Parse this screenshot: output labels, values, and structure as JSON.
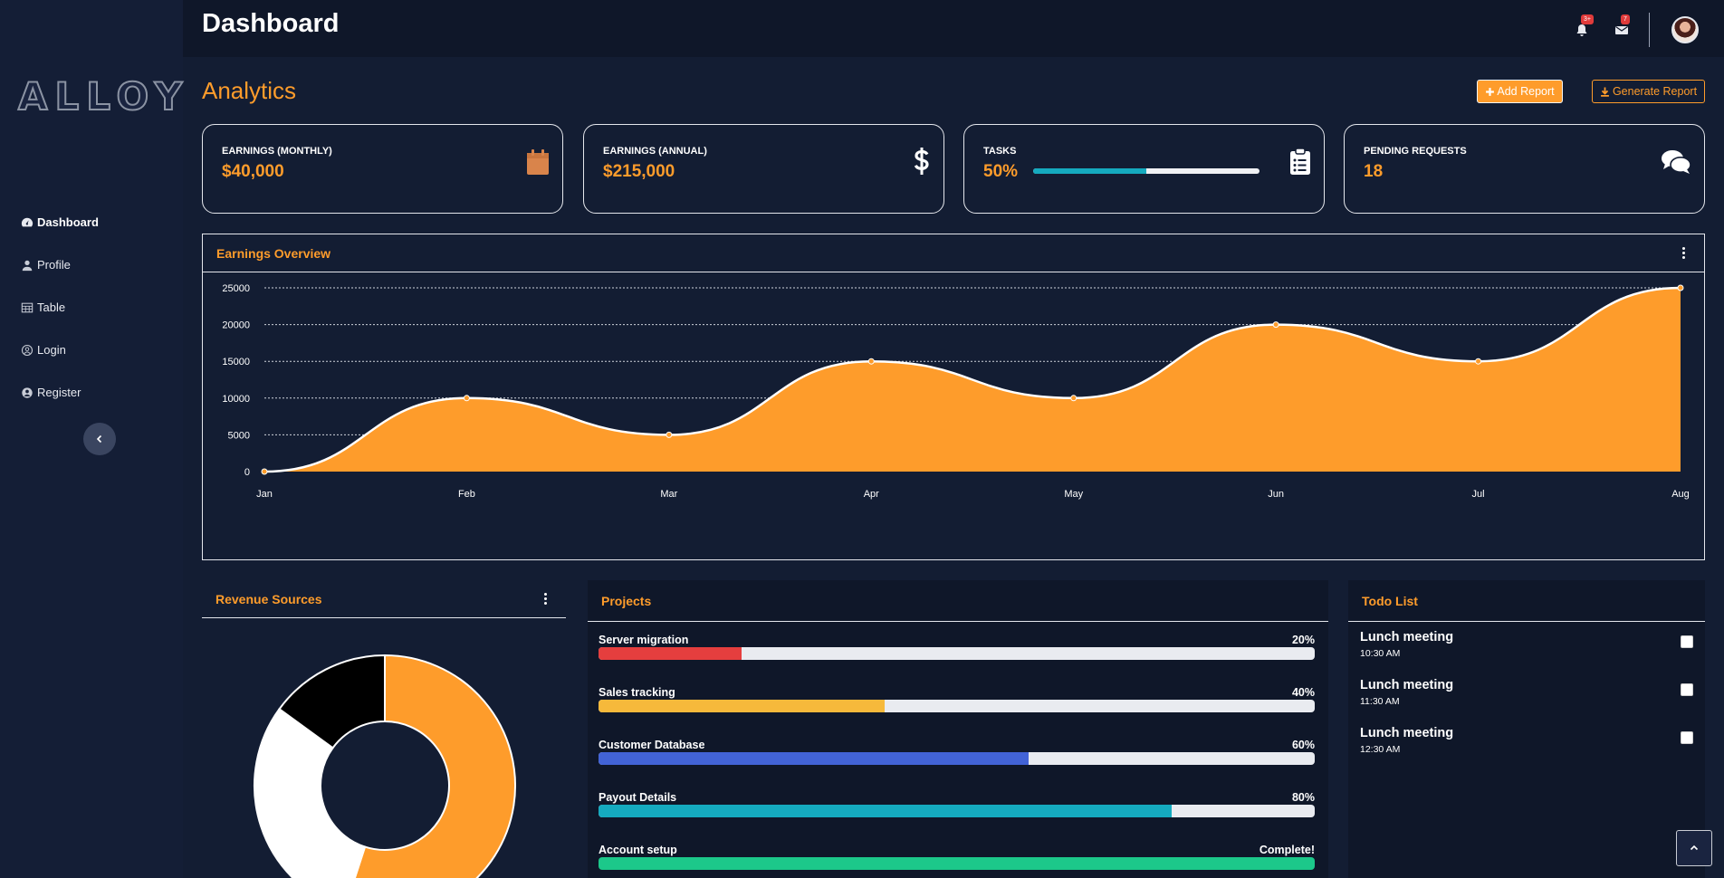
{
  "brand": {
    "logo": "ALLOY"
  },
  "sidebar": {
    "items": [
      {
        "label": "Dashboard",
        "icon": "tachometer-icon",
        "active": true
      },
      {
        "label": "Profile",
        "icon": "user-icon"
      },
      {
        "label": "Table",
        "icon": "table-icon"
      },
      {
        "label": "Login",
        "icon": "user-circle-icon"
      },
      {
        "label": "Register",
        "icon": "user-circle-filled-icon"
      }
    ]
  },
  "topbar": {
    "title": "Dashboard",
    "alerts_badge": "3+",
    "messages_badge": "7"
  },
  "header": {
    "title": "Analytics",
    "add_report": "Add Report",
    "generate_report": "Generate Report"
  },
  "stats": [
    {
      "label": "EARNINGS (MONTHLY)",
      "value": "$40,000",
      "icon": "calendar-icon"
    },
    {
      "label": "EARNINGS (ANNUAL)",
      "value": "$215,000",
      "icon": "dollar-icon"
    },
    {
      "label": "TASKS",
      "value": "50%",
      "progress": 0.5,
      "icon": "clipboard-list-icon"
    },
    {
      "label": "PENDING REQUESTS",
      "value": "18",
      "icon": "comments-icon"
    }
  ],
  "earnings": {
    "title": "Earnings Overview"
  },
  "chart_data": [
    {
      "type": "area",
      "title": "Earnings Overview",
      "categories": [
        "Jan",
        "Feb",
        "Mar",
        "Apr",
        "May",
        "Jun",
        "Jul",
        "Aug"
      ],
      "values": [
        0,
        10000,
        5000,
        15000,
        10000,
        20000,
        15000,
        25000
      ],
      "yticks": [
        0,
        5000,
        10000,
        15000,
        20000,
        25000
      ],
      "ylim": [
        0,
        25000
      ],
      "grid": true,
      "fill_color": "#fe9c2b",
      "line_color": "#ffffff"
    },
    {
      "type": "pie",
      "title": "Revenue Sources",
      "donut": true,
      "values": [
        55,
        30,
        15
      ],
      "colors": [
        "#fe9c2b",
        "#ffffff",
        "#000000"
      ]
    }
  ],
  "revenue": {
    "title": "Revenue Sources"
  },
  "projects": {
    "title": "Projects",
    "items": [
      {
        "name": "Server migration",
        "pct_label": "20%",
        "value": 0.2,
        "color": "#e53e3e"
      },
      {
        "name": "Sales tracking",
        "pct_label": "40%",
        "value": 0.4,
        "color": "#f6b93b"
      },
      {
        "name": "Customer Database",
        "pct_label": "60%",
        "value": 0.6,
        "color": "#4263d6"
      },
      {
        "name": "Payout Details",
        "pct_label": "80%",
        "value": 0.8,
        "color": "#15aabf"
      },
      {
        "name": "Account setup",
        "pct_label": "Complete!",
        "value": 1.0,
        "color": "#1cc88a"
      }
    ]
  },
  "todo": {
    "title": "Todo List",
    "items": [
      {
        "name": "Lunch meeting",
        "time": "10:30 AM"
      },
      {
        "name": "Lunch meeting",
        "time": "11:30 AM"
      },
      {
        "name": "Lunch meeting",
        "time": "12:30 AM"
      }
    ]
  }
}
